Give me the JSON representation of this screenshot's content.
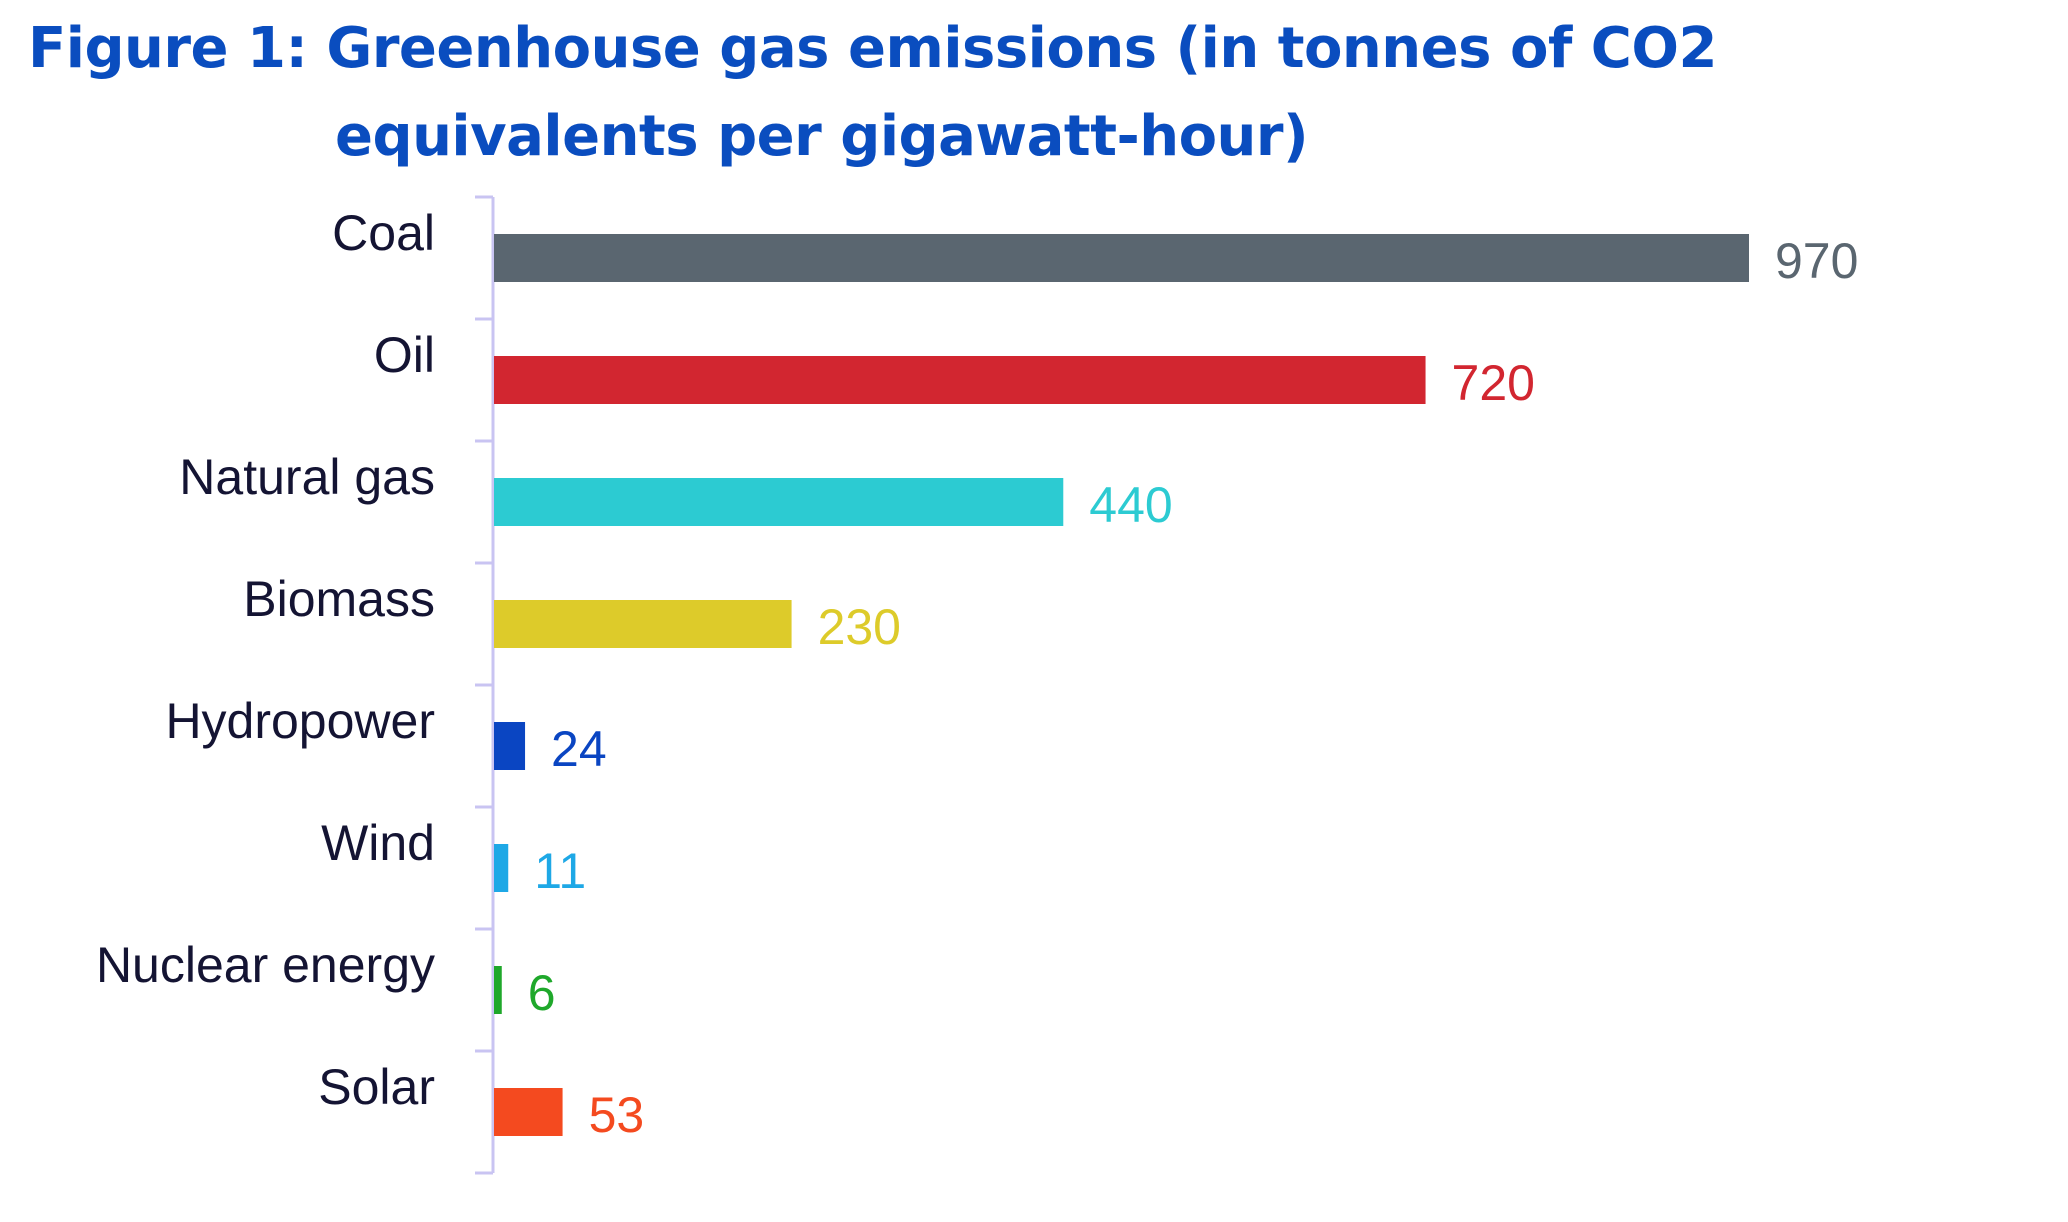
{
  "chart_data": {
    "type": "bar",
    "orientation": "horizontal",
    "title_lines": [
      "Figure 1: Greenhouse gas emissions (in tonnes of CO2",
      "equivalents per gigawatt-hour)"
    ],
    "categories": [
      "Coal",
      "Oil",
      "Natural gas",
      "Biomass",
      "Hydropower",
      "Wind",
      "Nuclear energy",
      "Solar"
    ],
    "values": [
      970,
      720,
      440,
      230,
      24,
      11,
      6,
      53
    ],
    "value_labels": [
      "970",
      "720",
      "440",
      "230",
      "24",
      "11",
      "6",
      "53"
    ],
    "colors": [
      "#5a6670",
      "#d22630",
      "#2ccbd2",
      "#ddcb2a",
      "#0a45c2",
      "#1ea8e6",
      "#1fa82b",
      "#f44a1f"
    ],
    "axis_color": "#c9c4f2",
    "xlim": [
      0,
      970
    ],
    "grid": false,
    "legend": "none"
  }
}
